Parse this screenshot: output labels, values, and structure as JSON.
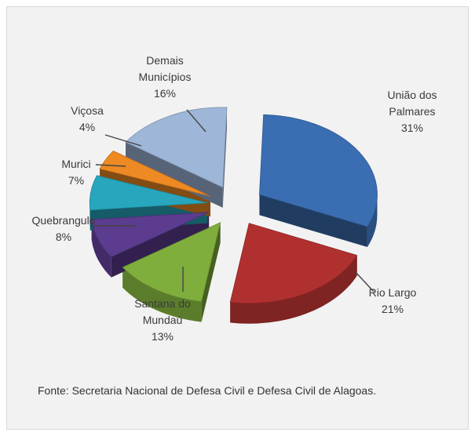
{
  "chart_data": {
    "type": "pie",
    "style": "3d-exploded",
    "slices": [
      {
        "label": [
          "União dos",
          "Palmares"
        ],
        "value": 31,
        "value_label": "31%",
        "color": "#3a6db1"
      },
      {
        "label": [
          "Rio Largo"
        ],
        "value": 21,
        "value_label": "21%",
        "color": "#b03030"
      },
      {
        "label": [
          "Santana do",
          "Mundaú"
        ],
        "value": 13,
        "value_label": "13%",
        "color": "#7fae3c"
      },
      {
        "label": [
          "Quebrangulo"
        ],
        "value": 8,
        "value_label": "8%",
        "color": "#5b3c8f"
      },
      {
        "label": [
          "Murici"
        ],
        "value": 7,
        "value_label": "7%",
        "color": "#27a6bd"
      },
      {
        "label": [
          "Viçosa"
        ],
        "value": 4,
        "value_label": "4%",
        "color": "#ee8a23"
      },
      {
        "label": [
          "Demais",
          "Municípios"
        ],
        "value": 16,
        "value_label": "16%",
        "color": "#9eb6d8"
      }
    ]
  },
  "caption": "Fonte: Secretaria Nacional de Defesa Civil e Defesa Civil de Alagoas."
}
